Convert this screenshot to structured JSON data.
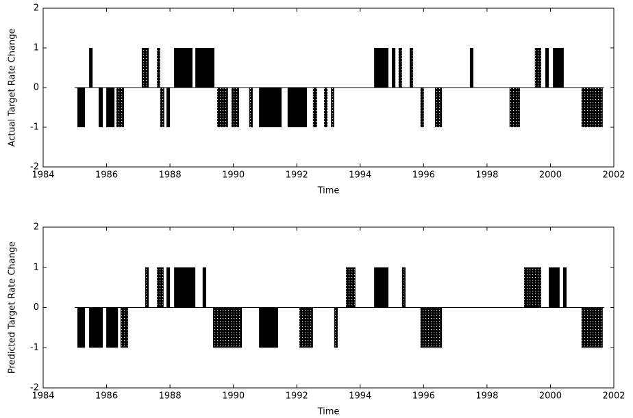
{
  "chart_data": [
    {
      "type": "span-bar",
      "ylabel": "Actual Target Rate Change",
      "xlabel": "Time",
      "xlim": [
        1984,
        2002
      ],
      "xticks": [
        1984,
        1986,
        1988,
        1990,
        1992,
        1994,
        1996,
        1998,
        2000,
        2002
      ],
      "ylim": [
        -2,
        2
      ],
      "yticks": [
        -2,
        -1,
        0,
        1,
        2
      ],
      "bars": [
        {
          "x": [
            1985.08,
            1985.32
          ],
          "value": -1,
          "fill": "solid"
        },
        {
          "x": [
            1985.45,
            1985.56
          ],
          "value": 1,
          "fill": "solid"
        },
        {
          "x": [
            1985.75,
            1985.88
          ],
          "value": -1,
          "fill": "solid"
        },
        {
          "x": [
            1985.99,
            1986.25
          ],
          "value": -1,
          "fill": "solid"
        },
        {
          "x": [
            1986.31,
            1986.55
          ],
          "value": -1,
          "fill": "dotted"
        },
        {
          "x": [
            1987.11,
            1987.33
          ],
          "value": 1,
          "fill": "dotted"
        },
        {
          "x": [
            1987.59,
            1987.69
          ],
          "value": 1,
          "fill": "dotted"
        },
        {
          "x": [
            1987.69,
            1987.82
          ],
          "value": -1,
          "fill": "dotted"
        },
        {
          "x": [
            1987.89,
            1988.0
          ],
          "value": -1,
          "fill": "solid"
        },
        {
          "x": [
            1988.13,
            1988.71
          ],
          "value": 1,
          "fill": "solid"
        },
        {
          "x": [
            1988.8,
            1989.4
          ],
          "value": 1,
          "fill": "solid"
        },
        {
          "x": [
            1989.49,
            1989.83
          ],
          "value": -1,
          "fill": "dotted"
        },
        {
          "x": [
            1989.94,
            1990.18
          ],
          "value": -1,
          "fill": "dotted"
        },
        {
          "x": [
            1990.5,
            1990.61
          ],
          "value": -1,
          "fill": "dotted"
        },
        {
          "x": [
            1990.81,
            1991.52
          ],
          "value": -1,
          "fill": "solid"
        },
        {
          "x": [
            1991.71,
            1992.32
          ],
          "value": -1,
          "fill": "solid"
        },
        {
          "x": [
            1992.51,
            1992.64
          ],
          "value": -1,
          "fill": "dotted"
        },
        {
          "x": [
            1992.86,
            1992.97
          ],
          "value": -1,
          "fill": "dotted"
        },
        {
          "x": [
            1993.08,
            1993.18
          ],
          "value": -1,
          "fill": "dotted"
        },
        {
          "x": [
            1994.44,
            1994.89
          ],
          "value": 1,
          "fill": "solid"
        },
        {
          "x": [
            1995.0,
            1995.11
          ],
          "value": 1,
          "fill": "solid"
        },
        {
          "x": [
            1995.21,
            1995.32
          ],
          "value": 1,
          "fill": "dotted"
        },
        {
          "x": [
            1995.56,
            1995.67
          ],
          "value": 1,
          "fill": "dotted"
        },
        {
          "x": [
            1995.9,
            1996.01
          ],
          "value": -1,
          "fill": "dotted"
        },
        {
          "x": [
            1996.36,
            1996.58
          ],
          "value": -1,
          "fill": "dotted"
        },
        {
          "x": [
            1997.46,
            1997.57
          ],
          "value": 1,
          "fill": "solid"
        },
        {
          "x": [
            1998.71,
            1999.04
          ],
          "value": -1,
          "fill": "dotted"
        },
        {
          "x": [
            1999.51,
            1999.71
          ],
          "value": 1,
          "fill": "dotted"
        },
        {
          "x": [
            1999.84,
            1999.95
          ],
          "value": 1,
          "fill": "solid"
        },
        {
          "x": [
            2000.08,
            2000.42
          ],
          "value": 1,
          "fill": "solid"
        },
        {
          "x": [
            2000.98,
            2001.65
          ],
          "value": -1,
          "fill": "dotted"
        }
      ]
    },
    {
      "type": "span-bar",
      "ylabel": "Predicted Target Rate Change",
      "xlabel": "Time",
      "xlim": [
        1984,
        2002
      ],
      "xticks": [
        1984,
        1986,
        1988,
        1990,
        1992,
        1994,
        1996,
        1998,
        2000,
        2002
      ],
      "ylim": [
        -2,
        2
      ],
      "yticks": [
        -2,
        -1,
        0,
        1,
        2
      ],
      "bars": [
        {
          "x": [
            1985.08,
            1985.32
          ],
          "value": -1,
          "fill": "solid"
        },
        {
          "x": [
            1985.45,
            1985.88
          ],
          "value": -1,
          "fill": "solid"
        },
        {
          "x": [
            1985.99,
            1986.36
          ],
          "value": -1,
          "fill": "solid"
        },
        {
          "x": [
            1986.44,
            1986.68
          ],
          "value": -1,
          "fill": "dotted"
        },
        {
          "x": [
            1987.22,
            1987.33
          ],
          "value": 1,
          "fill": "dotted"
        },
        {
          "x": [
            1987.59,
            1987.8
          ],
          "value": 1,
          "fill": "dotted"
        },
        {
          "x": [
            1987.89,
            1988.0
          ],
          "value": 1,
          "fill": "solid"
        },
        {
          "x": [
            1988.13,
            1988.8
          ],
          "value": 1,
          "fill": "solid"
        },
        {
          "x": [
            1989.03,
            1989.14
          ],
          "value": 1,
          "fill": "solid"
        },
        {
          "x": [
            1989.36,
            1990.27
          ],
          "value": -1,
          "fill": "dotted"
        },
        {
          "x": [
            1990.81,
            1991.41
          ],
          "value": -1,
          "fill": "solid"
        },
        {
          "x": [
            1992.08,
            1992.51
          ],
          "value": -1,
          "fill": "dotted"
        },
        {
          "x": [
            1993.18,
            1993.29
          ],
          "value": -1,
          "fill": "dotted"
        },
        {
          "x": [
            1993.55,
            1993.85
          ],
          "value": 1,
          "fill": "dotted"
        },
        {
          "x": [
            1994.44,
            1994.89
          ],
          "value": 1,
          "fill": "solid"
        },
        {
          "x": [
            1995.32,
            1995.43
          ],
          "value": 1,
          "fill": "dotted"
        },
        {
          "x": [
            1995.9,
            1996.58
          ],
          "value": -1,
          "fill": "dotted"
        },
        {
          "x": [
            1999.17,
            1999.71
          ],
          "value": 1,
          "fill": "dotted"
        },
        {
          "x": [
            1999.95,
            2000.29
          ],
          "value": 1,
          "fill": "solid"
        },
        {
          "x": [
            2000.4,
            2000.51
          ],
          "value": 1,
          "fill": "solid"
        },
        {
          "x": [
            2000.98,
            2001.65
          ],
          "value": -1,
          "fill": "dotted"
        }
      ]
    }
  ]
}
